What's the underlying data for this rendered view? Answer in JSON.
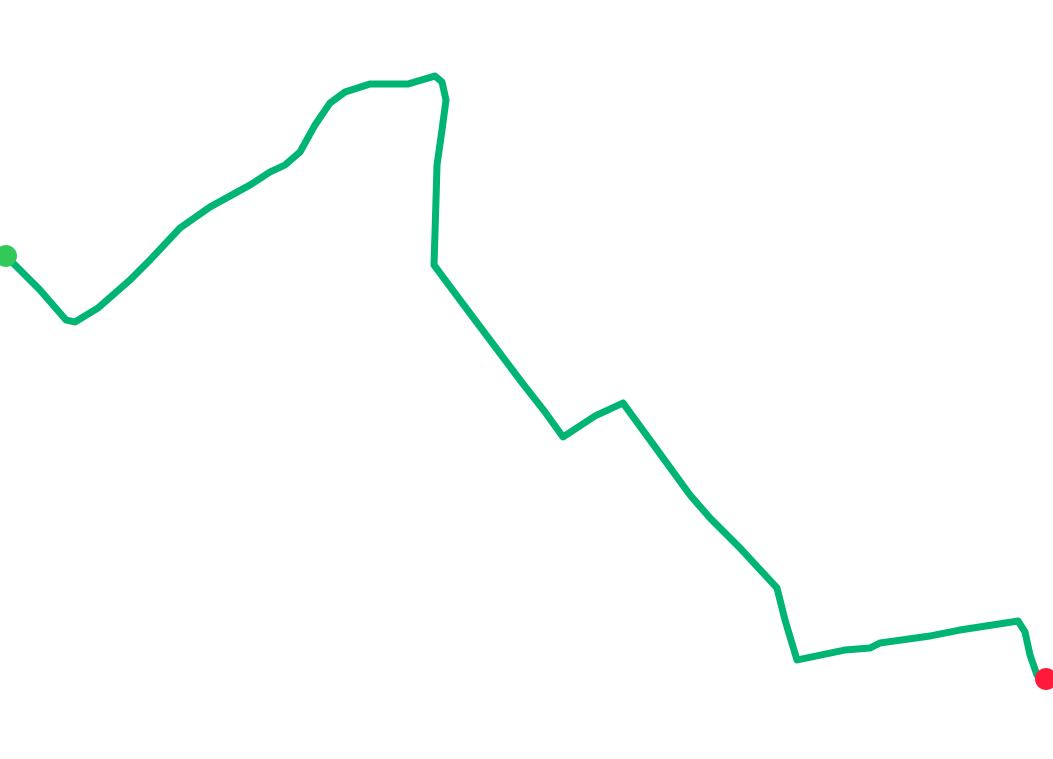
{
  "route": {
    "line_color": "#00b574",
    "start_marker": {
      "icon": "start-point-icon",
      "color": "#33c95a"
    },
    "end_marker": {
      "icon": "end-point-icon",
      "color": "#ff1a3c"
    }
  }
}
